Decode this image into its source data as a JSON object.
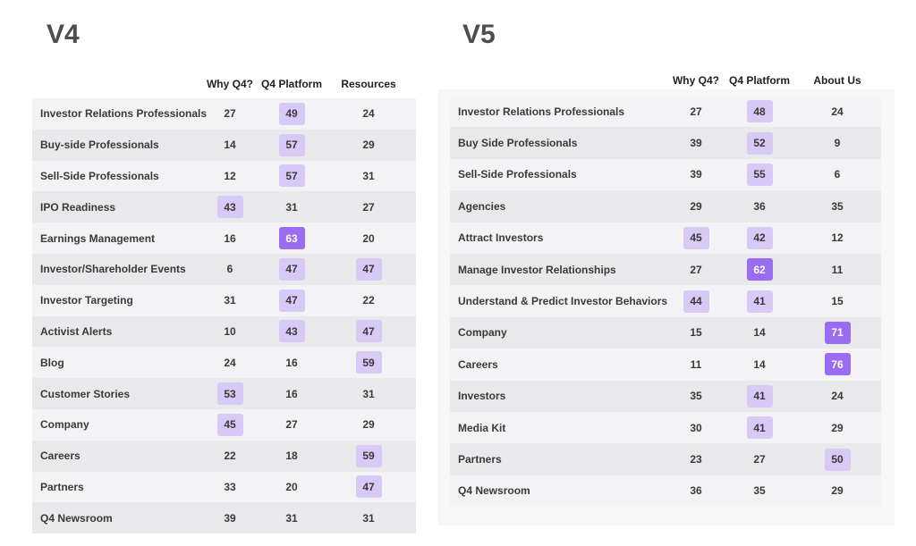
{
  "tables": [
    {
      "title": "V4",
      "headers": [
        "Why Q4?",
        "Q4 Platform",
        "Resources"
      ],
      "rows": [
        {
          "label": "Investor Relations Professionals",
          "values": [
            27,
            49,
            24
          ]
        },
        {
          "label": "Buy-side Professionals",
          "values": [
            14,
            57,
            29
          ]
        },
        {
          "label": "Sell-Side Professionals",
          "values": [
            12,
            57,
            31
          ]
        },
        {
          "label": "IPO Readiness",
          "values": [
            43,
            31,
            27
          ]
        },
        {
          "label": "Earnings Management",
          "values": [
            16,
            63,
            20
          ]
        },
        {
          "label": "Investor/Shareholder Events",
          "values": [
            6,
            47,
            47
          ]
        },
        {
          "label": "Investor Targeting",
          "values": [
            31,
            47,
            22
          ]
        },
        {
          "label": "Activist Alerts",
          "values": [
            10,
            43,
            47
          ]
        },
        {
          "label": "Blog",
          "values": [
            24,
            16,
            59
          ]
        },
        {
          "label": "Customer Stories",
          "values": [
            53,
            16,
            31
          ]
        },
        {
          "label": "Company",
          "values": [
            45,
            27,
            29
          ]
        },
        {
          "label": "Careers",
          "values": [
            22,
            18,
            59
          ]
        },
        {
          "label": "Partners",
          "values": [
            33,
            20,
            47
          ]
        },
        {
          "label": "Q4 Newsroom",
          "values": [
            39,
            31,
            31
          ]
        }
      ]
    },
    {
      "title": "V5",
      "headers": [
        "Why Q4?",
        "Q4 Platform",
        "About Us"
      ],
      "rows": [
        {
          "label": "Investor Relations Professionals",
          "values": [
            27,
            48,
            24
          ]
        },
        {
          "label": "Buy Side Professionals",
          "values": [
            39,
            52,
            9
          ]
        },
        {
          "label": "Sell-Side Professionals",
          "values": [
            39,
            55,
            6
          ]
        },
        {
          "label": "Agencies",
          "values": [
            29,
            36,
            35
          ]
        },
        {
          "label": "Attract Investors",
          "values": [
            45,
            42,
            12
          ]
        },
        {
          "label": "Manage Investor Relationships",
          "values": [
            27,
            62,
            11
          ]
        },
        {
          "label": "Understand & Predict Investor Behaviors",
          "values": [
            44,
            41,
            15
          ]
        },
        {
          "label": "Company",
          "values": [
            15,
            14,
            71
          ]
        },
        {
          "label": "Careers",
          "values": [
            11,
            14,
            76
          ]
        },
        {
          "label": "Investors",
          "values": [
            35,
            41,
            24
          ]
        },
        {
          "label": "Media Kit",
          "values": [
            30,
            41,
            29
          ]
        },
        {
          "label": "Partners",
          "values": [
            23,
            27,
            50
          ]
        },
        {
          "label": "Q4 Newsroom",
          "values": [
            36,
            35,
            29
          ]
        }
      ]
    }
  ]
}
